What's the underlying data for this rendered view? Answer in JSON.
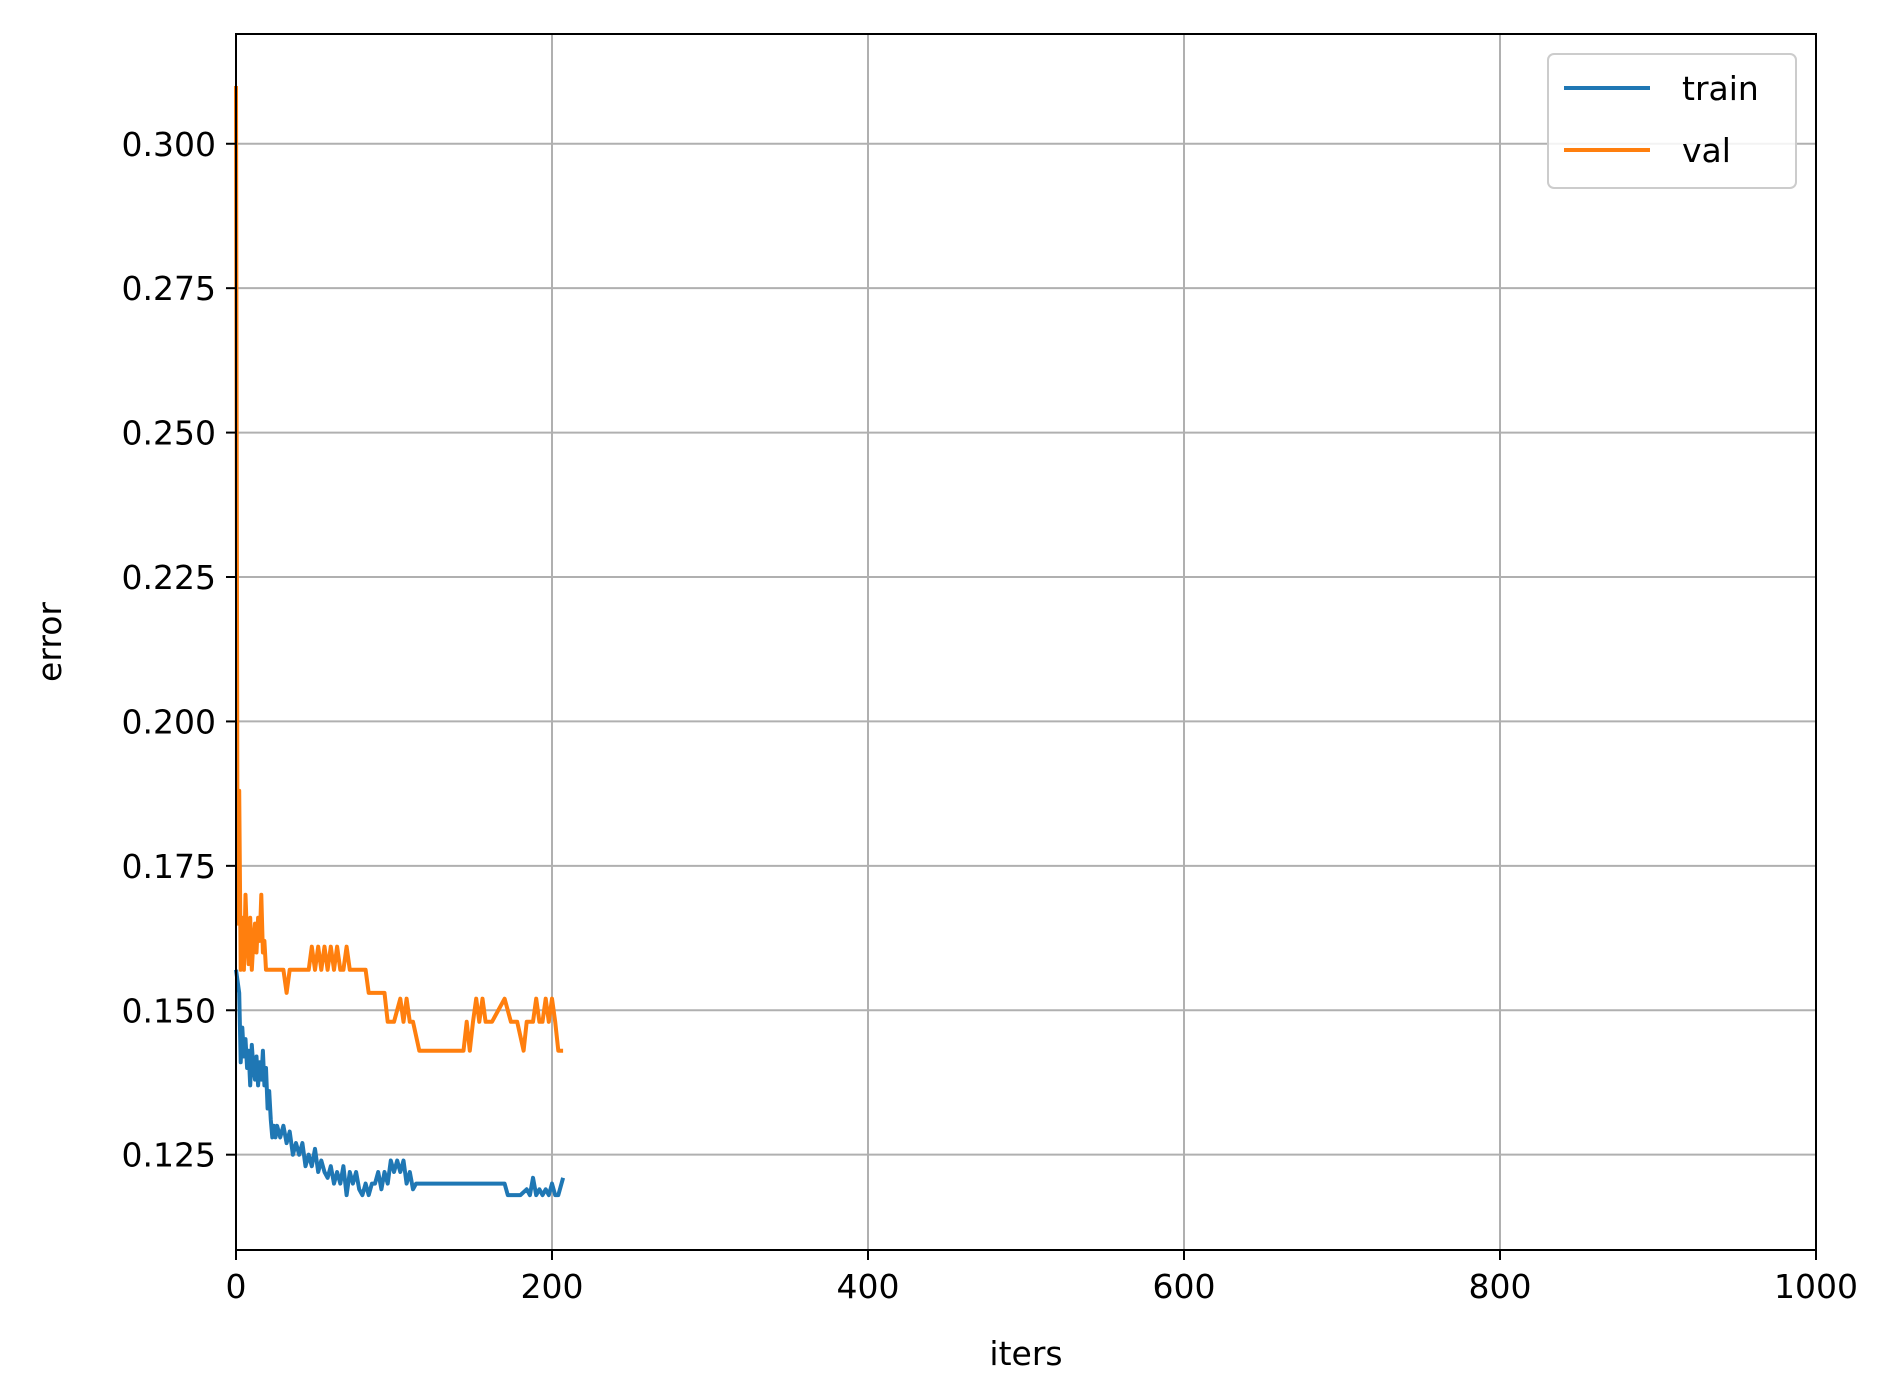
{
  "chart_data": {
    "type": "line",
    "title": "",
    "xlabel": "iters",
    "ylabel": "error",
    "xlim": [
      0,
      1000
    ],
    "ylim": [
      0.1085,
      0.319
    ],
    "xticks": [
      0,
      200,
      400,
      600,
      800,
      1000
    ],
    "xtick_labels": [
      "0",
      "200",
      "400",
      "600",
      "800",
      "1000"
    ],
    "yticks": [
      0.125,
      0.15,
      0.175,
      0.2,
      0.225,
      0.25,
      0.275,
      0.3
    ],
    "ytick_labels": [
      "0.125",
      "0.150",
      "0.175",
      "0.200",
      "0.225",
      "0.250",
      "0.275",
      "0.300"
    ],
    "grid": true,
    "legend_position": "top-right",
    "series": [
      {
        "name": "train",
        "color": "#1f77b4",
        "x": [
          0,
          2,
          3,
          4,
          5,
          6,
          7,
          8,
          9,
          10,
          11,
          12,
          13,
          14,
          15,
          16,
          17,
          18,
          19,
          20,
          21,
          22,
          23,
          24,
          25,
          26,
          28,
          30,
          32,
          34,
          36,
          38,
          40,
          42,
          44,
          46,
          48,
          50,
          52,
          54,
          56,
          58,
          60,
          62,
          64,
          66,
          68,
          70,
          72,
          74,
          76,
          78,
          80,
          82,
          84,
          86,
          88,
          90,
          92,
          94,
          96,
          98,
          100,
          102,
          104,
          106,
          108,
          110,
          112,
          114,
          120,
          130,
          140,
          150,
          160,
          170,
          172,
          174,
          180,
          184,
          186,
          188,
          190,
          192,
          194,
          196,
          198,
          200,
          202,
          204,
          207
        ],
        "y": [
          0.157,
          0.153,
          0.141,
          0.147,
          0.142,
          0.145,
          0.14,
          0.143,
          0.137,
          0.144,
          0.14,
          0.138,
          0.142,
          0.137,
          0.141,
          0.138,
          0.143,
          0.137,
          0.14,
          0.133,
          0.136,
          0.131,
          0.128,
          0.13,
          0.128,
          0.13,
          0.128,
          0.13,
          0.127,
          0.129,
          0.125,
          0.127,
          0.125,
          0.127,
          0.123,
          0.125,
          0.123,
          0.126,
          0.122,
          0.124,
          0.122,
          0.121,
          0.123,
          0.12,
          0.122,
          0.12,
          0.123,
          0.118,
          0.122,
          0.12,
          0.122,
          0.119,
          0.118,
          0.12,
          0.118,
          0.12,
          0.12,
          0.122,
          0.119,
          0.122,
          0.12,
          0.124,
          0.122,
          0.124,
          0.122,
          0.124,
          0.12,
          0.122,
          0.119,
          0.12,
          0.12,
          0.12,
          0.12,
          0.12,
          0.12,
          0.12,
          0.118,
          0.118,
          0.118,
          0.119,
          0.118,
          0.121,
          0.118,
          0.119,
          0.118,
          0.119,
          0.118,
          0.12,
          0.118,
          0.118,
          0.121
        ]
      },
      {
        "name": "val",
        "color": "#ff7f0e",
        "x": [
          0,
          1,
          2,
          3,
          4,
          5,
          6,
          7,
          8,
          9,
          10,
          11,
          12,
          13,
          14,
          15,
          16,
          17,
          18,
          19,
          20,
          22,
          26,
          30,
          32,
          34,
          38,
          42,
          46,
          48,
          50,
          52,
          54,
          56,
          58,
          60,
          62,
          64,
          66,
          68,
          70,
          72,
          74,
          76,
          78,
          80,
          82,
          84,
          90,
          94,
          96,
          100,
          104,
          106,
          108,
          110,
          112,
          116,
          120,
          130,
          140,
          144,
          146,
          148,
          150,
          152,
          154,
          156,
          158,
          162,
          170,
          174,
          178,
          182,
          184,
          186,
          188,
          190,
          192,
          194,
          196,
          198,
          200,
          202,
          204,
          207
        ],
        "y": [
          0.31,
          0.165,
          0.188,
          0.157,
          0.166,
          0.157,
          0.17,
          0.162,
          0.158,
          0.166,
          0.157,
          0.162,
          0.165,
          0.16,
          0.166,
          0.162,
          0.17,
          0.16,
          0.162,
          0.157,
          0.157,
          0.157,
          0.157,
          0.157,
          0.153,
          0.157,
          0.157,
          0.157,
          0.157,
          0.161,
          0.157,
          0.161,
          0.157,
          0.161,
          0.157,
          0.161,
          0.157,
          0.161,
          0.157,
          0.157,
          0.161,
          0.157,
          0.157,
          0.157,
          0.157,
          0.157,
          0.157,
          0.153,
          0.153,
          0.153,
          0.148,
          0.148,
          0.152,
          0.148,
          0.152,
          0.148,
          0.148,
          0.143,
          0.143,
          0.143,
          0.143,
          0.143,
          0.148,
          0.143,
          0.148,
          0.152,
          0.148,
          0.152,
          0.148,
          0.148,
          0.152,
          0.148,
          0.148,
          0.143,
          0.148,
          0.148,
          0.148,
          0.152,
          0.148,
          0.148,
          0.152,
          0.148,
          0.152,
          0.148,
          0.143,
          0.143
        ]
      }
    ]
  }
}
